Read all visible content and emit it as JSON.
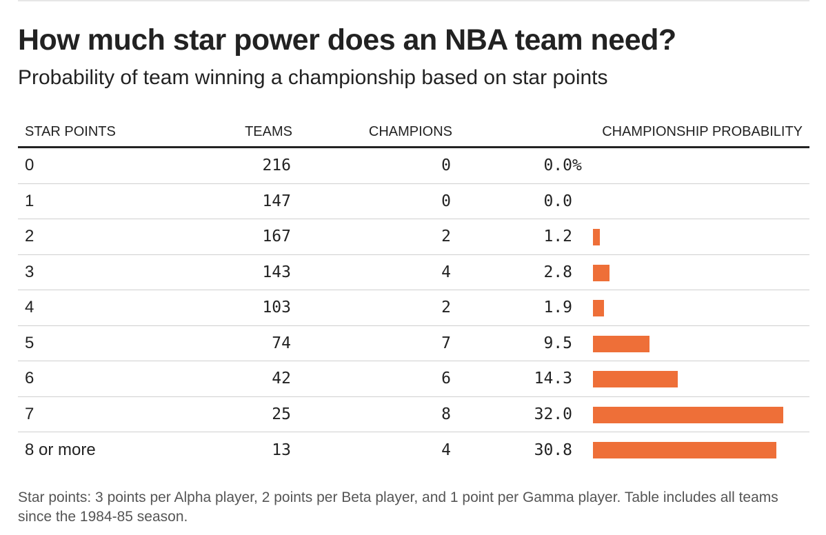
{
  "title": "How much star power does an NBA team need?",
  "subtitle": "Probability of team winning a championship based on star points",
  "footnote": "Star points: 3 points per Alpha player, 2 points per Beta player, and 1 point per Gamma player. Table includes all teams since the 1984-85 season.",
  "colors": {
    "bar": "#ee6f38",
    "header_rule": "#222222",
    "row_rule": "#cfcfcf"
  },
  "chart_data": {
    "type": "table",
    "columns": [
      "STAR POINTS",
      "TEAMS",
      "CHAMPIONS",
      "CHAMPIONSHIP PROBABILITY"
    ],
    "bar_max": 32.0,
    "rows": [
      {
        "star_points": "0",
        "teams": "216",
        "champions": "0",
        "probability": "0.0",
        "suffix": "%",
        "value": 0.0
      },
      {
        "star_points": "1",
        "teams": "147",
        "champions": "0",
        "probability": "0.0",
        "suffix": "",
        "value": 0.0
      },
      {
        "star_points": "2",
        "teams": "167",
        "champions": "2",
        "probability": "1.2",
        "suffix": "",
        "value": 1.2
      },
      {
        "star_points": "3",
        "teams": "143",
        "champions": "4",
        "probability": "2.8",
        "suffix": "",
        "value": 2.8
      },
      {
        "star_points": "4",
        "teams": "103",
        "champions": "2",
        "probability": "1.9",
        "suffix": "",
        "value": 1.9
      },
      {
        "star_points": "5",
        "teams": "74",
        "champions": "7",
        "probability": "9.5",
        "suffix": "",
        "value": 9.5
      },
      {
        "star_points": "6",
        "teams": "42",
        "champions": "6",
        "probability": "14.3",
        "suffix": "",
        "value": 14.3
      },
      {
        "star_points": "7",
        "teams": "25",
        "champions": "8",
        "probability": "32.0",
        "suffix": "",
        "value": 32.0
      },
      {
        "star_points": "8 or more",
        "teams": "13",
        "champions": "4",
        "probability": "30.8",
        "suffix": "",
        "value": 30.8
      }
    ]
  }
}
